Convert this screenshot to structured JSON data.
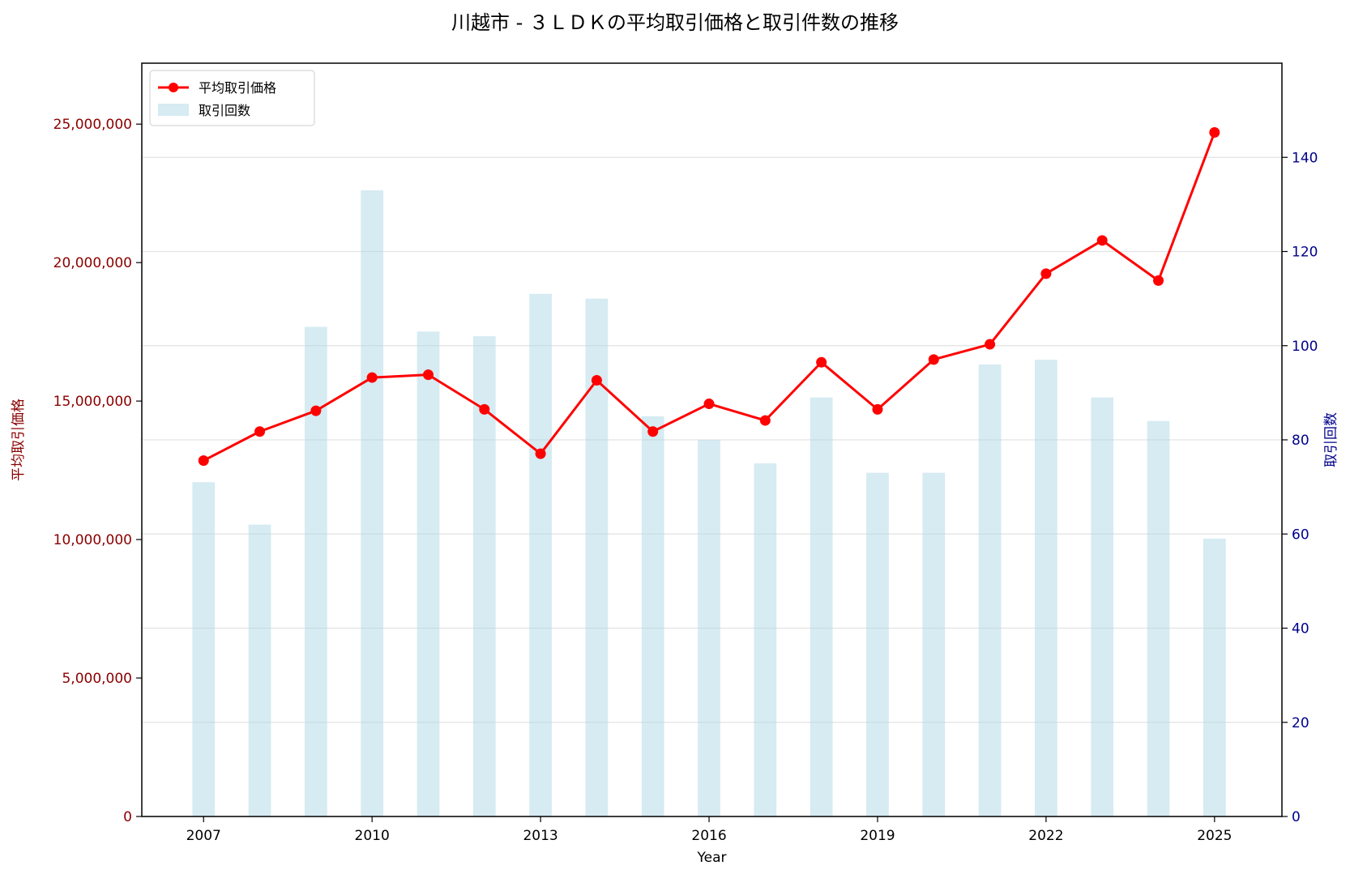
{
  "chart_data": {
    "type": "bar+line",
    "title": "川越市 - ３ＬＤＫの平均取引価格と取引件数の推移",
    "xlabel": "Year",
    "ylabel_left": "平均取引価格",
    "ylabel_right": "取引回数",
    "x": [
      2007,
      2008,
      2009,
      2010,
      2011,
      2012,
      2013,
      2014,
      2015,
      2016,
      2017,
      2018,
      2019,
      2020,
      2021,
      2022,
      2023,
      2024,
      2025
    ],
    "x_ticks": [
      "2007",
      "2010",
      "2013",
      "2016",
      "2019",
      "2022",
      "2025"
    ],
    "xlim": [
      2005.9,
      2026.2
    ],
    "ylim_left": [
      0,
      27200000
    ],
    "ylim_right": [
      0,
      160
    ],
    "left_ticks": [
      "0",
      "5,000,000",
      "10,000,000",
      "15,000,000",
      "20,000,000",
      "25,000,000"
    ],
    "right_ticks": [
      "0",
      "20",
      "40",
      "60",
      "80",
      "100",
      "120",
      "140"
    ],
    "grid": true,
    "legend_position": "upper-left",
    "series": [
      {
        "name": "平均取引価格",
        "kind": "line",
        "axis": "left",
        "color": "#ff0000",
        "values": [
          12850000,
          13900000,
          14650000,
          15850000,
          15950000,
          14700000,
          13100000,
          15750000,
          13900000,
          14900000,
          14300000,
          16400000,
          14700000,
          16500000,
          17050000,
          19600000,
          20800000,
          19350000,
          24700000
        ]
      },
      {
        "name": "取引回数",
        "kind": "bar",
        "axis": "right",
        "color": "#add8e6",
        "values": [
          71,
          62,
          104,
          133,
          103,
          102,
          111,
          110,
          85,
          80,
          75,
          89,
          73,
          73,
          96,
          97,
          89,
          84,
          59
        ]
      }
    ]
  }
}
